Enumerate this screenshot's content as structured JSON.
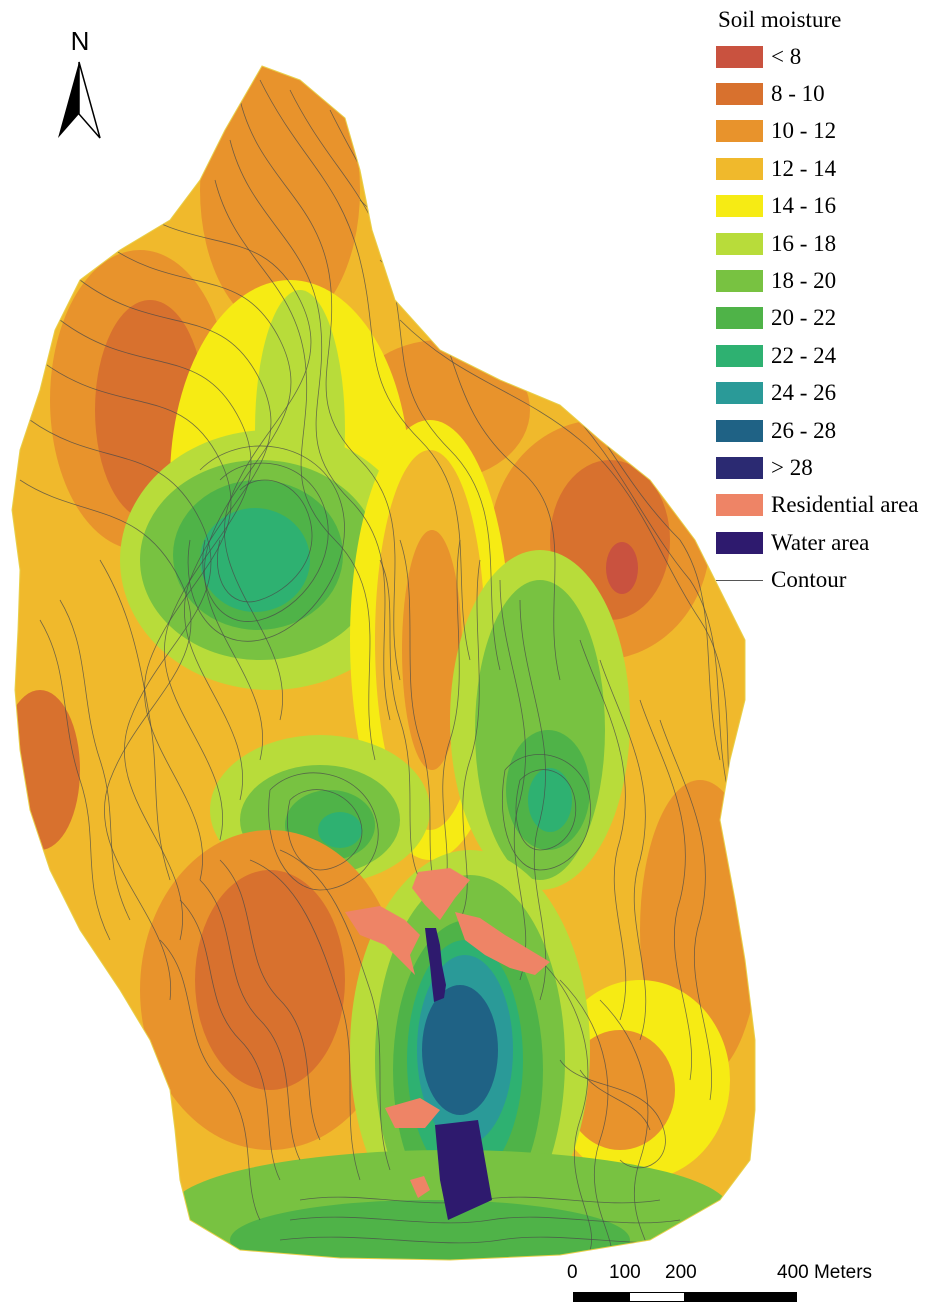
{
  "north_arrow": {
    "letter": "N"
  },
  "legend": {
    "title": "Soil moisture",
    "items": [
      {
        "label": "< 8",
        "color": "#c9523f"
      },
      {
        "label": "8 - 10",
        "color": "#d8712e"
      },
      {
        "label": "10 - 12",
        "color": "#e8932c"
      },
      {
        "label": "12 - 14",
        "color": "#f0b92c"
      },
      {
        "label": "14 - 16",
        "color": "#f6eb14"
      },
      {
        "label": "16 - 18",
        "color": "#b8dc3a"
      },
      {
        "label": "18 - 20",
        "color": "#78c241"
      },
      {
        "label": "20 - 22",
        "color": "#4fb348"
      },
      {
        "label": "22 - 24",
        "color": "#2eb171"
      },
      {
        "label": "24 - 26",
        "color": "#2a9a98"
      },
      {
        "label": "26 - 28",
        "color": "#1f6285"
      },
      {
        "label": "> 28",
        "color": "#2b2a72"
      },
      {
        "label": "Residential area",
        "color": "#ee8466"
      },
      {
        "label": "Water area",
        "color": "#2e1a6e"
      }
    ],
    "contour_label": "Contour"
  },
  "scale_bar": {
    "ticks": [
      "0",
      "100",
      "200",
      "400 Meters"
    ]
  }
}
